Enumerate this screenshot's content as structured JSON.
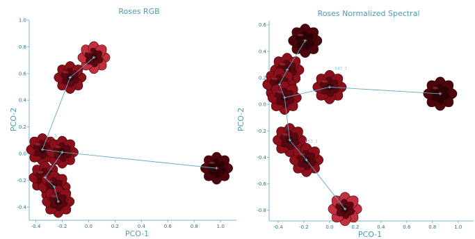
{
  "colors": {
    "axis": "#7fb6cc",
    "text": "#4a9ab8",
    "link": "#5fa8c6",
    "rose_dark": "#4a060c",
    "rose_mid": "#8c0f1c",
    "rose_light": "#c23040"
  },
  "chart_data": [
    {
      "type": "scatter",
      "title": "Roses RGB",
      "xlabel": "PCO-1",
      "ylabel": "PCO-2",
      "xlim": [
        -0.45,
        1.12
      ],
      "ylim": [
        -0.5,
        1.0
      ],
      "xticks": [
        -0.4,
        -0.2,
        0.0,
        0.2,
        0.4,
        0.6,
        0.8,
        1.0
      ],
      "xtick_labels": [
        "-0.4",
        "-0.2",
        "0.0",
        "0.2",
        "0.4",
        "0.6",
        "0.8",
        "1.0"
      ],
      "yticks": [
        -0.4,
        -0.2,
        0.0,
        0.2,
        0.4,
        0.6,
        0.8,
        1.0
      ],
      "ytick_labels": [
        "-0.4",
        "-0.2",
        "0.0",
        "0.2",
        "0.4",
        "0.6",
        "0.8",
        "1.0"
      ],
      "points": [
        {
          "x": 0.04,
          "y": 0.72,
          "tone": "light"
        },
        {
          "x": -0.14,
          "y": 0.57,
          "tone": "mid"
        },
        {
          "x": -0.35,
          "y": 0.03,
          "tone": "mid"
        },
        {
          "x": -0.2,
          "y": 0.01,
          "tone": "mid"
        },
        {
          "x": -0.33,
          "y": -0.18,
          "tone": "mid"
        },
        {
          "x": -0.26,
          "y": -0.25,
          "tone": "mid"
        },
        {
          "x": -0.23,
          "y": -0.36,
          "tone": "mid"
        },
        {
          "x": 0.97,
          "y": -0.11,
          "tone": "dark"
        }
      ],
      "links": [
        [
          0,
          1
        ],
        [
          1,
          2
        ],
        [
          2,
          3
        ],
        [
          3,
          4
        ],
        [
          4,
          5
        ],
        [
          5,
          6
        ],
        [
          3,
          7
        ]
      ],
      "labels": [
        {
          "x": -0.28,
          "y": 0.12,
          "text": "_2"
        }
      ]
    },
    {
      "type": "scatter",
      "title": "Roses Normalized Spectral",
      "xlabel": "PCO-1",
      "ylabel": "PCO-2",
      "xlim": [
        -0.47,
        1.12
      ],
      "ylim": [
        -0.88,
        0.63
      ],
      "xticks": [
        -0.4,
        -0.2,
        0.0,
        0.2,
        0.4,
        0.6,
        0.8,
        1.0
      ],
      "xtick_labels": [
        "-0.4",
        "-0.2",
        "0.0",
        "0.2",
        "0.4",
        "0.6",
        "0.8",
        "1.0"
      ],
      "yticks": [
        -0.8,
        -0.6,
        -0.4,
        -0.2,
        0.0,
        0.2,
        0.4,
        0.6
      ],
      "ytick_labels": [
        "-0.8",
        "-0.6",
        "-0.4",
        "-0.2",
        "0.0",
        "0.2",
        "0.4",
        "0.6"
      ],
      "points": [
        {
          "x": -0.19,
          "y": 0.48,
          "tone": "dark"
        },
        {
          "x": -0.33,
          "y": 0.26,
          "tone": "mid"
        },
        {
          "x": -0.39,
          "y": 0.15,
          "tone": "mid"
        },
        {
          "x": -0.35,
          "y": 0.05,
          "tone": "mid"
        },
        {
          "x": 0.0,
          "y": 0.13,
          "tone": "mid"
        },
        {
          "x": 0.86,
          "y": 0.08,
          "tone": "dark"
        },
        {
          "x": -0.31,
          "y": -0.27,
          "tone": "mid"
        },
        {
          "x": -0.18,
          "y": -0.42,
          "tone": "mid"
        },
        {
          "x": 0.12,
          "y": -0.79,
          "tone": "light"
        }
      ],
      "links": [
        [
          0,
          1
        ],
        [
          1,
          2
        ],
        [
          2,
          3
        ],
        [
          3,
          4
        ],
        [
          4,
          5
        ],
        [
          3,
          6
        ],
        [
          6,
          7
        ],
        [
          7,
          8
        ]
      ],
      "labels": [
        {
          "x": 0.04,
          "y": 0.26,
          "text": "043_1"
        },
        {
          "x": -0.19,
          "y": -0.29,
          "text": "053_1"
        }
      ]
    }
  ]
}
